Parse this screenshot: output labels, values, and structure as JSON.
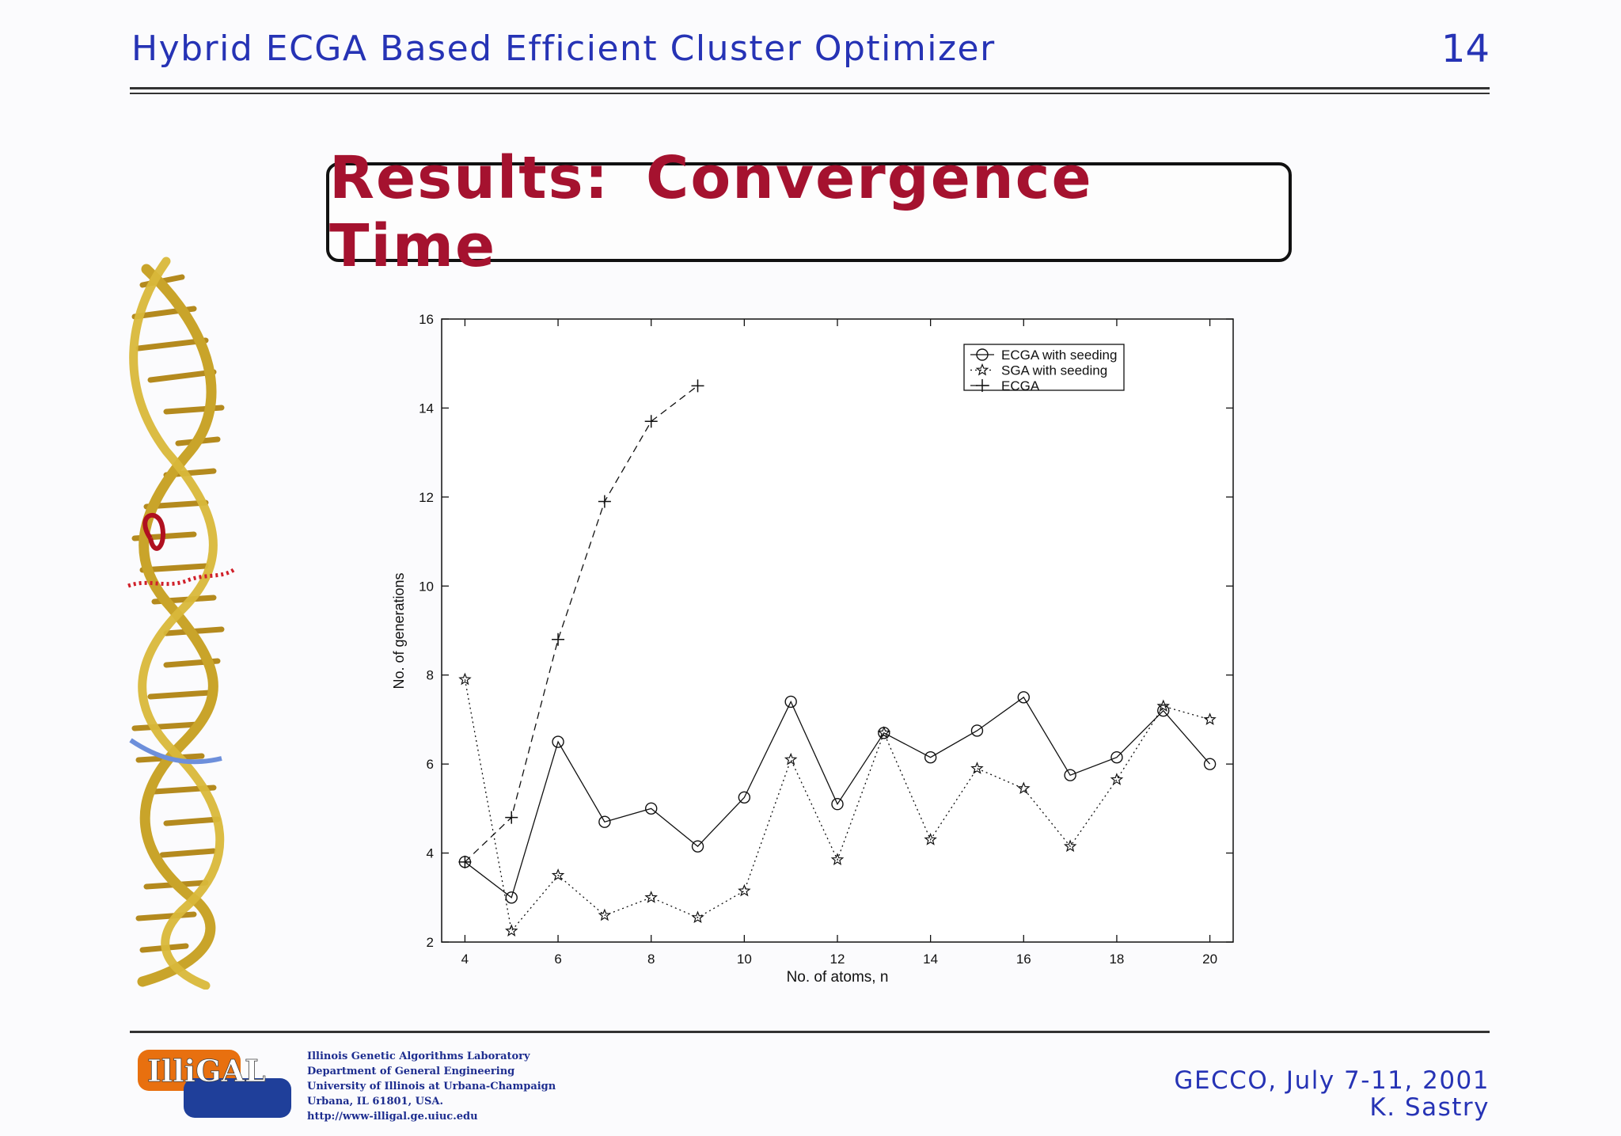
{
  "header": {
    "title": "Hybrid ECGA Based Efficient Cluster Optimizer",
    "page_number": "14"
  },
  "slide": {
    "title": "Results:  Convergence Time"
  },
  "footer": {
    "logo": {
      "top_text": "IlliGAL"
    },
    "lab_lines": [
      "Illinois Genetic Algorithms Laboratory",
      "Department of General Engineering",
      "University of Illinois at Urbana-Champaign",
      "Urbana, IL 61801, USA.",
      "http://www-illigal.ge.uiuc.edu"
    ],
    "conference": "GECCO,  July 7-11, 2001",
    "author": "K. Sastry"
  },
  "colors": {
    "header_blue": "#2633b5",
    "title_red": "#a5122f",
    "dna_gold": "#c9a42a"
  },
  "chart_data": {
    "type": "line",
    "xlabel": "No. of atoms, n",
    "ylabel": "No. of generations",
    "xlim": [
      3.5,
      20.5
    ],
    "ylim": [
      2,
      16
    ],
    "xticks": [
      4,
      6,
      8,
      10,
      12,
      14,
      16,
      18,
      20
    ],
    "yticks": [
      2,
      4,
      6,
      8,
      10,
      12,
      14,
      16
    ],
    "legend_position": "top-right",
    "grid": false,
    "series": [
      {
        "name": "ECGA with seeding",
        "marker": "circle",
        "line": "solid",
        "x": [
          4,
          5,
          6,
          7,
          8,
          9,
          10,
          11,
          12,
          13,
          14,
          15,
          16,
          17,
          18,
          19,
          20
        ],
        "y": [
          3.8,
          3.0,
          6.5,
          4.7,
          5.0,
          4.15,
          5.25,
          7.4,
          5.1,
          6.7,
          6.15,
          6.75,
          7.5,
          5.75,
          6.15,
          7.2,
          6.0
        ]
      },
      {
        "name": "SGA with seeding",
        "marker": "star",
        "line": "dotted",
        "x": [
          4,
          5,
          6,
          7,
          8,
          9,
          10,
          11,
          12,
          13,
          14,
          15,
          16,
          17,
          18,
          19,
          20
        ],
        "y": [
          7.9,
          2.25,
          3.5,
          2.6,
          3.0,
          2.55,
          3.15,
          6.1,
          3.85,
          6.7,
          4.3,
          5.9,
          5.45,
          4.15,
          5.65,
          7.3,
          7.0
        ]
      },
      {
        "name": "ECGA",
        "marker": "plus",
        "line": "dashed",
        "x": [
          4,
          5,
          6,
          7,
          8,
          9
        ],
        "y": [
          3.8,
          4.8,
          8.8,
          11.9,
          13.7,
          14.5
        ]
      }
    ]
  }
}
